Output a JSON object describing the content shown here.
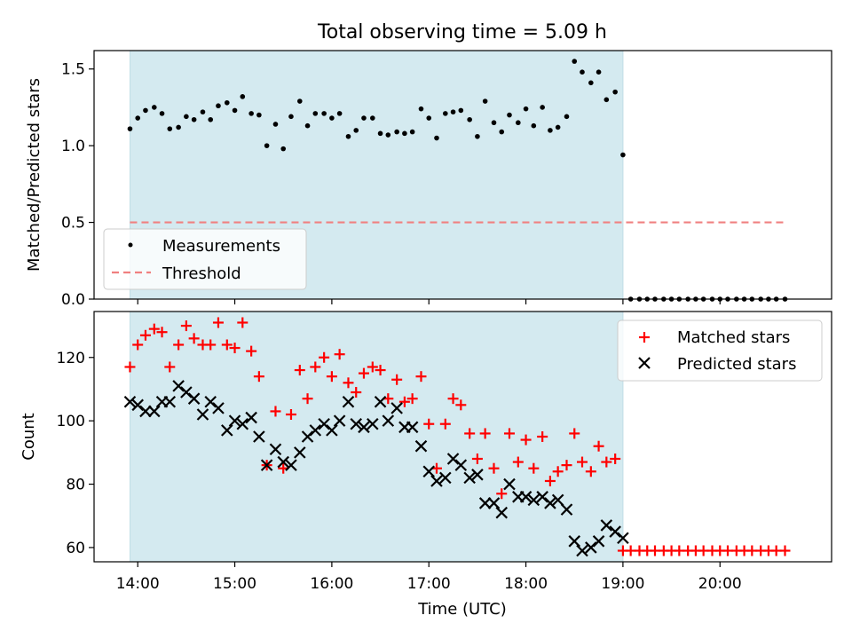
{
  "figure_title": "Total observing time = 5.09 h",
  "chart_data": [
    {
      "type": "scatter",
      "title": "Total observing time = 5.09 h",
      "xlabel": "",
      "ylabel": "Matched/Predicted stars",
      "x_unit": "hours (UTC)",
      "xlim": [
        13.55,
        21.15
      ],
      "ylim": [
        0.0,
        1.62
      ],
      "yticks": [
        0.0,
        0.5,
        1.0,
        1.5
      ],
      "ytick_labels": [
        "0.0",
        "0.5",
        "1.0",
        "1.5"
      ],
      "grid": false,
      "legend_position": "lower-left",
      "shaded_interval_x": [
        13.92,
        19.0
      ],
      "shade_color": "#d4eaf0",
      "series": [
        {
          "name": "Measurements",
          "kind": "scatter",
          "color": "#000000",
          "marker": "dot",
          "x": [
            13.92,
            14.0,
            14.08,
            14.17,
            14.25,
            14.33,
            14.42,
            14.5,
            14.58,
            14.67,
            14.75,
            14.83,
            14.92,
            15.0,
            15.08,
            15.17,
            15.25,
            15.33,
            15.42,
            15.5,
            15.58,
            15.67,
            15.75,
            15.83,
            15.92,
            16.0,
            16.08,
            16.17,
            16.25,
            16.33,
            16.42,
            16.5,
            16.58,
            16.67,
            16.75,
            16.83,
            16.92,
            17.0,
            17.08,
            17.17,
            17.25,
            17.33,
            17.42,
            17.5,
            17.58,
            17.67,
            17.75,
            17.83,
            17.92,
            18.0,
            18.08,
            18.17,
            18.25,
            18.33,
            18.42,
            18.5,
            18.58,
            18.67,
            18.75,
            18.83,
            18.92,
            19.0,
            19.08,
            19.17,
            19.25,
            19.33,
            19.42,
            19.5,
            19.58,
            19.67,
            19.75,
            19.83,
            19.92,
            20.0,
            20.08,
            20.17,
            20.25,
            20.33,
            20.42,
            20.5,
            20.58,
            20.67
          ],
          "y": [
            1.11,
            1.18,
            1.23,
            1.25,
            1.21,
            1.11,
            1.12,
            1.19,
            1.17,
            1.22,
            1.17,
            1.26,
            1.28,
            1.23,
            1.32,
            1.21,
            1.2,
            1.0,
            1.14,
            0.98,
            1.19,
            1.29,
            1.13,
            1.21,
            1.21,
            1.18,
            1.21,
            1.06,
            1.1,
            1.18,
            1.18,
            1.08,
            1.07,
            1.09,
            1.08,
            1.09,
            1.24,
            1.18,
            1.05,
            1.21,
            1.22,
            1.23,
            1.17,
            1.06,
            1.29,
            1.15,
            1.09,
            1.2,
            1.15,
            1.24,
            1.13,
            1.25,
            1.1,
            1.12,
            1.19,
            1.55,
            1.48,
            1.41,
            1.48,
            1.3,
            1.35,
            0.94,
            0.0,
            0.0,
            0.0,
            0.0,
            0.0,
            0.0,
            0.0,
            0.0,
            0.0,
            0.0,
            0.0,
            0.0,
            0.0,
            0.0,
            0.0,
            0.0,
            0.0,
            0.0,
            0.0,
            0.0
          ]
        },
        {
          "name": "Threshold",
          "kind": "line",
          "style": "dashed",
          "color": "#f08080",
          "x": [
            13.92,
            20.67
          ],
          "y": [
            0.5,
            0.5
          ]
        }
      ]
    },
    {
      "type": "scatter",
      "title": "",
      "xlabel": "Time (UTC)",
      "ylabel": "Count",
      "x_unit": "hours (UTC)",
      "xlim": [
        13.55,
        21.15
      ],
      "ylim": [
        55.5,
        134.5
      ],
      "yticks": [
        60,
        80,
        100,
        120
      ],
      "ytick_labels": [
        "60",
        "80",
        "100",
        "120"
      ],
      "xticks": [
        14,
        15,
        16,
        17,
        18,
        19,
        20
      ],
      "xtick_labels": [
        "14:00",
        "15:00",
        "16:00",
        "17:00",
        "18:00",
        "19:00",
        "20:00"
      ],
      "grid": false,
      "legend_position": "top-right",
      "shaded_interval_x": [
        13.92,
        19.0
      ],
      "shade_color": "#d4eaf0",
      "series": [
        {
          "name": "Matched stars",
          "kind": "scatter",
          "marker": "plus",
          "color": "#ff0000",
          "x": [
            13.92,
            14.0,
            14.08,
            14.17,
            14.25,
            14.33,
            14.42,
            14.5,
            14.58,
            14.67,
            14.75,
            14.83,
            14.92,
            15.0,
            15.08,
            15.17,
            15.25,
            15.33,
            15.42,
            15.5,
            15.58,
            15.67,
            15.75,
            15.83,
            15.92,
            16.0,
            16.08,
            16.17,
            16.25,
            16.33,
            16.42,
            16.5,
            16.58,
            16.67,
            16.75,
            16.83,
            16.92,
            17.0,
            17.08,
            17.17,
            17.25,
            17.33,
            17.42,
            17.5,
            17.58,
            17.67,
            17.75,
            17.83,
            17.92,
            18.0,
            18.08,
            18.17,
            18.25,
            18.33,
            18.42,
            18.5,
            18.58,
            18.67,
            18.75,
            18.83,
            18.92,
            19.0,
            19.08,
            19.17,
            19.25,
            19.33,
            19.42,
            19.5,
            19.58,
            19.67,
            19.75,
            19.83,
            19.92,
            20.0,
            20.08,
            20.17,
            20.25,
            20.33,
            20.42,
            20.5,
            20.58,
            20.67
          ],
          "y": [
            117,
            124,
            127,
            129,
            128,
            117,
            124,
            130,
            126,
            124,
            124,
            131,
            124,
            123,
            131,
            122,
            114,
            86,
            103,
            85,
            102,
            116,
            107,
            117,
            120,
            114,
            121,
            112,
            109,
            115,
            117,
            116,
            107,
            113,
            106,
            107,
            114,
            99,
            85,
            99,
            107,
            105,
            96,
            88,
            96,
            85,
            77,
            96,
            87,
            94,
            85,
            95,
            81,
            84,
            86,
            96,
            87,
            84,
            92,
            87,
            88,
            59,
            59,
            59,
            59,
            59,
            59,
            59,
            59,
            59,
            59,
            59,
            59,
            59,
            59,
            59,
            59,
            59,
            59,
            59,
            59,
            59
          ]
        },
        {
          "name": "Predicted stars",
          "kind": "scatter",
          "marker": "x",
          "color": "#000000",
          "x": [
            13.92,
            14.0,
            14.08,
            14.17,
            14.25,
            14.33,
            14.42,
            14.5,
            14.58,
            14.67,
            14.75,
            14.83,
            14.92,
            15.0,
            15.08,
            15.17,
            15.25,
            15.33,
            15.42,
            15.5,
            15.58,
            15.67,
            15.75,
            15.83,
            15.92,
            16.0,
            16.08,
            16.17,
            16.25,
            16.33,
            16.42,
            16.5,
            16.58,
            16.67,
            16.75,
            16.83,
            16.92,
            17.0,
            17.08,
            17.17,
            17.25,
            17.33,
            17.42,
            17.5,
            17.58,
            17.67,
            17.75,
            17.83,
            17.92,
            18.0,
            18.08,
            18.17,
            18.25,
            18.33,
            18.42,
            18.5,
            18.58,
            18.67,
            18.75,
            18.83,
            18.92,
            19.0
          ],
          "y": [
            106,
            105,
            103,
            103,
            106,
            106,
            111,
            109,
            107,
            102,
            106,
            104,
            97,
            100,
            99,
            101,
            95,
            86,
            91,
            87,
            86,
            90,
            95,
            97,
            99,
            97,
            100,
            106,
            99,
            98,
            99,
            106,
            100,
            104,
            98,
            98,
            92,
            84,
            81,
            82,
            88,
            86,
            82,
            83,
            74,
            74,
            71,
            80,
            76,
            76,
            75,
            76,
            74,
            75,
            72,
            62,
            59,
            60,
            62,
            67,
            65,
            63
          ]
        }
      ]
    }
  ]
}
